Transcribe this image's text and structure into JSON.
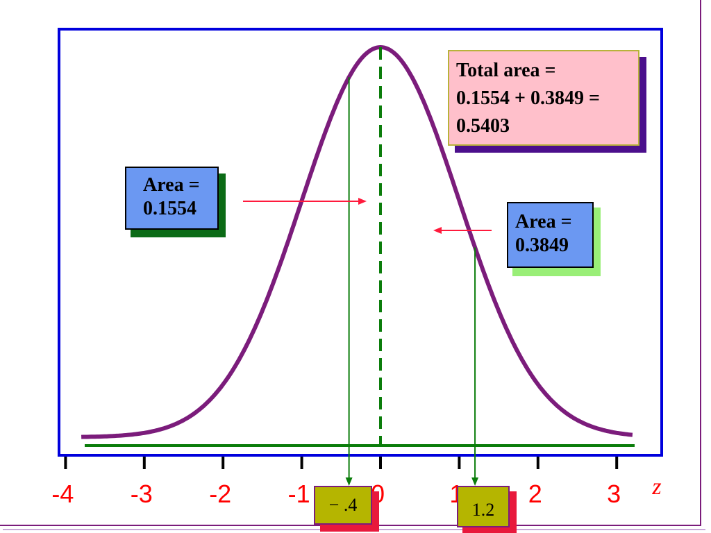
{
  "chart_data": {
    "type": "line",
    "title": "",
    "xlabel": "z",
    "ylabel": "",
    "xlim": [
      -4,
      3.2
    ],
    "x_ticks": [
      "-4",
      "-3",
      "-2",
      "-1",
      "0",
      "1",
      "2",
      "3"
    ],
    "grid": false,
    "series": [
      {
        "curve": "standard-normal-density",
        "x_range": [
          -3.8,
          3.2
        ]
      }
    ],
    "markers": [
      {
        "z": -0.4,
        "label": "− .4"
      },
      {
        "z": 1.2,
        "label": "1.2"
      }
    ],
    "mean_line": {
      "z": 0,
      "style": "dashed"
    },
    "annotations": {
      "total_area": {
        "lines": [
          "Total area =",
          "0.1554 + 0.3849 =",
          "0.5403"
        ]
      },
      "left_area": {
        "lines": [
          "Area =",
          "0.1554"
        ]
      },
      "right_area": {
        "lines": [
          "Area =",
          "0.3849"
        ]
      }
    }
  },
  "colors": {
    "curve": "#7b1c7b",
    "plot_border": "#0000dd",
    "baseline": "#0b7d0b",
    "tick_label": "#ff0000",
    "arrow": "#ff1a3c",
    "marker_line": "#0b7d0b"
  }
}
